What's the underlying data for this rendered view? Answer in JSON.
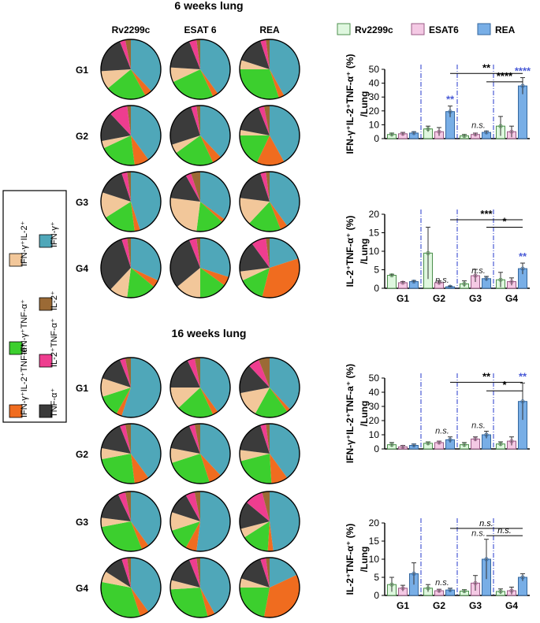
{
  "sections": [
    {
      "title": "6 weeks  lung",
      "chart_group": 0
    },
    {
      "title": "16 weeks  lung",
      "chart_group": 1
    }
  ],
  "pie_columns": [
    "Rv2299c",
    "ESAT 6",
    "REA"
  ],
  "pie_rows": [
    "G1",
    "G2",
    "G3",
    "G4"
  ],
  "legend_pie": {
    "items": [
      {
        "label": "IFN-γ⁺IL-2⁺",
        "color": "#f2c79a"
      },
      {
        "label": "IFN-γ⁺",
        "color": "#4fa7b9"
      },
      {
        "label": "IFN-γ⁺TNF-α⁺",
        "color": "#3ccf2e"
      },
      {
        "label": "IL-2⁺",
        "color": "#9b6a35"
      },
      {
        "label": "IFN-γ⁺IL-2⁺TNF-α⁺",
        "color": "#f06c1f"
      },
      {
        "label": "IL-2⁺TNF-α⁺",
        "color": "#ee3d8f"
      },
      {
        "label": "TNF-α⁺",
        "color": "#3b3b3b"
      }
    ]
  },
  "legend_bar": [
    {
      "label": "Rv2299c",
      "fill": "#dff7df",
      "stroke": "#4c8f4c"
    },
    {
      "label": "ESAT6",
      "fill": "#f4c9e4",
      "stroke": "#9a5c86"
    },
    {
      "label": "REA",
      "fill": "#78aee6",
      "stroke": "#34679e"
    }
  ],
  "chart_data": [
    {
      "type": "pie",
      "title": "6 weeks  lung",
      "categories": [
        "IFN-γ⁺",
        "IFN-γ⁺IL-2⁺TNF-α⁺",
        "IFN-γ⁺TNF-α⁺",
        "IFN-γ⁺IL-2⁺",
        "TNF-α⁺",
        "IL-2⁺TNF-α⁺",
        "IL-2⁺"
      ],
      "rows": [
        "G1",
        "G2",
        "G3",
        "G4"
      ],
      "columns": [
        "Rv2299c",
        "ESAT 6",
        "REA"
      ],
      "values": [
        [
          [
            38,
            4,
            22,
            10,
            20,
            3,
            3
          ],
          [
            40,
            3,
            25,
            8,
            18,
            4,
            2
          ],
          [
            42,
            3,
            30,
            5,
            15,
            3,
            2
          ]
        ],
        [
          [
            40,
            8,
            20,
            4,
            16,
            10,
            2
          ],
          [
            38,
            5,
            22,
            5,
            25,
            3,
            2
          ],
          [
            42,
            15,
            18,
            3,
            16,
            3,
            3
          ]
        ],
        [
          [
            45,
            3,
            18,
            14,
            15,
            3,
            2
          ],
          [
            35,
            2,
            15,
            25,
            15,
            3,
            5
          ],
          [
            40,
            4,
            18,
            15,
            18,
            3,
            2
          ]
        ],
        [
          [
            32,
            4,
            16,
            10,
            33,
            3,
            2
          ],
          [
            30,
            5,
            15,
            14,
            30,
            4,
            2
          ],
          [
            20,
            34,
            14,
            5,
            17,
            8,
            2
          ]
        ]
      ]
    },
    {
      "type": "pie",
      "title": "16 weeks  lung",
      "categories": [
        "IFN-γ⁺",
        "IFN-γ⁺IL-2⁺TNF-α⁺",
        "IFN-γ⁺TNF-α⁺",
        "IFN-γ⁺IL-2⁺",
        "TNF-α⁺",
        "IL-2⁺TNF-α⁺",
        "IL-2⁺"
      ],
      "rows": [
        "G1",
        "G2",
        "G3",
        "G4"
      ],
      "columns": [
        "Rv2299c",
        "ESAT 6",
        "REA"
      ],
      "values": [
        [
          [
            55,
            3,
            12,
            10,
            14,
            3,
            3
          ],
          [
            40,
            3,
            20,
            12,
            18,
            4,
            3
          ],
          [
            38,
            2,
            18,
            14,
            16,
            6,
            6
          ]
        ],
        [
          [
            40,
            8,
            24,
            6,
            16,
            3,
            3
          ],
          [
            38,
            7,
            25,
            8,
            16,
            3,
            3
          ],
          [
            40,
            9,
            22,
            6,
            18,
            3,
            2
          ]
        ],
        [
          [
            40,
            4,
            28,
            5,
            16,
            4,
            3
          ],
          [
            52,
            6,
            12,
            10,
            12,
            5,
            3
          ],
          [
            48,
            3,
            15,
            5,
            15,
            10,
            4
          ]
        ],
        [
          [
            40,
            5,
            33,
            6,
            11,
            3,
            2
          ],
          [
            42,
            4,
            28,
            5,
            15,
            4,
            2
          ],
          [
            18,
            35,
            22,
            5,
            15,
            3,
            2
          ]
        ]
      ]
    },
    {
      "type": "bar",
      "title": "",
      "ylabel": "IFN-γ⁺IL-2⁺TNF-α⁺ (%)/Lung",
      "ylabel_lines": [
        "IFN-γ⁺IL-2⁺TNF-α⁺ (%)",
        "/Lung"
      ],
      "ylim": [
        0,
        50
      ],
      "yticks": [
        0,
        10,
        20,
        30,
        40,
        50
      ],
      "categories": [
        "G1",
        "G2",
        "G3",
        "G4"
      ],
      "show_xlabels": false,
      "series": [
        {
          "name": "Rv2299c",
          "values": [
            3,
            7,
            2,
            9
          ],
          "err": [
            1,
            2,
            1,
            7
          ]
        },
        {
          "name": "ESAT6",
          "values": [
            3.5,
            5,
            3,
            5
          ],
          "err": [
            1,
            3,
            1,
            4
          ]
        },
        {
          "name": "REA",
          "values": [
            4,
            19.5,
            4.5,
            38
          ],
          "err": [
            1,
            4,
            1,
            6
          ]
        }
      ],
      "annotations": [
        {
          "series": 2,
          "group": 1,
          "text": "**",
          "color": "#4a5bd6"
        },
        {
          "series": 2,
          "group": 2,
          "text": "n.s.",
          "color": "#222222"
        },
        {
          "series": 2,
          "group": 3,
          "text": "****",
          "color": "#4a5bd6"
        }
      ],
      "brackets": [
        {
          "from_group": 1,
          "to_group": 3,
          "y": 47,
          "text": "**"
        },
        {
          "from_group": 2,
          "to_group": 3,
          "y": 41,
          "text": "****"
        }
      ]
    },
    {
      "type": "bar",
      "title": "",
      "ylabel": "IL-2⁺TNF-α⁺ (%)/Lung",
      "ylabel_lines": [
        "IL-2⁺TNF-α⁺ (%)",
        "/Lung"
      ],
      "ylim": [
        0,
        20
      ],
      "yticks": [
        0,
        5,
        10,
        15,
        20
      ],
      "categories": [
        "G1",
        "G2",
        "G3",
        "G4"
      ],
      "show_xlabels": true,
      "series": [
        {
          "name": "Rv2299c",
          "values": [
            3.5,
            9.5,
            1.2,
            2.3
          ],
          "err": [
            0.3,
            7,
            0.8,
            2
          ]
        },
        {
          "name": "ESAT6",
          "values": [
            1.5,
            1.5,
            3.4,
            1.8
          ],
          "err": [
            0.3,
            0.5,
            1.7,
            1
          ]
        },
        {
          "name": "REA",
          "values": [
            1.8,
            0.4,
            2.6,
            5.3
          ],
          "err": [
            0.3,
            0.2,
            0.6,
            1.5
          ]
        }
      ],
      "annotations": [
        {
          "series": 2,
          "group": 1,
          "text": "n.s.",
          "color": "#222222"
        },
        {
          "series": 2,
          "group": 2,
          "text": "n.s.",
          "color": "#222222"
        },
        {
          "series": 2,
          "group": 3,
          "text": "**",
          "color": "#4a5bd6"
        }
      ],
      "brackets": [
        {
          "from_group": 1,
          "to_group": 3,
          "y": 18.5,
          "text": "***"
        },
        {
          "from_group": 2,
          "to_group": 3,
          "y": 16.5,
          "text": "*"
        }
      ]
    },
    {
      "type": "bar",
      "title": "",
      "ylabel": "IFN-γ⁺IL-2⁺TNF-a⁺ (%)/Lung",
      "ylabel_lines": [
        "IFN-γ⁺IL-2⁺TNF-a⁺ (%)",
        "/Lung"
      ],
      "ylim": [
        0,
        50
      ],
      "yticks": [
        0,
        10,
        20,
        30,
        40,
        50
      ],
      "categories": [
        "G1",
        "G2",
        "G3",
        "G4"
      ],
      "show_xlabels": false,
      "series": [
        {
          "name": "Rv2299c",
          "values": [
            3,
            4,
            3,
            3.5
          ],
          "err": [
            1.5,
            1,
            1.5,
            1.5
          ]
        },
        {
          "name": "ESAT6",
          "values": [
            1.5,
            4.5,
            7,
            5.5
          ],
          "err": [
            1,
            1,
            1.5,
            3
          ]
        },
        {
          "name": "REA",
          "values": [
            2.5,
            6.5,
            10,
            33.5
          ],
          "err": [
            1,
            2,
            2.5,
            13
          ]
        }
      ],
      "annotations": [
        {
          "series": 2,
          "group": 1,
          "text": "n.s.",
          "color": "#222222"
        },
        {
          "series": 2,
          "group": 2,
          "text": "n.s.",
          "color": "#222222"
        },
        {
          "series": 2,
          "group": 3,
          "text": "**",
          "color": "#4a5bd6"
        }
      ],
      "brackets": [
        {
          "from_group": 1,
          "to_group": 3,
          "y": 47,
          "text": "**"
        },
        {
          "from_group": 2,
          "to_group": 3,
          "y": 41,
          "text": "*"
        }
      ]
    },
    {
      "type": "bar",
      "title": "",
      "ylabel": "IL-2⁺TNF-α⁺ (%)/Lung",
      "ylabel_lines": [
        "IL-2⁺TNF-α⁺ (%)",
        "/Lung"
      ],
      "ylim": [
        0,
        20
      ],
      "yticks": [
        0,
        5,
        10,
        15,
        20
      ],
      "categories": [
        "G1",
        "G2",
        "G3",
        "G4"
      ],
      "show_xlabels": true,
      "series": [
        {
          "name": "Rv2299c",
          "values": [
            3,
            2,
            1.2,
            1.1
          ],
          "err": [
            2,
            1,
            0.4,
            0.7
          ]
        },
        {
          "name": "ESAT6",
          "values": [
            2,
            1.3,
            3.4,
            1.3
          ],
          "err": [
            0.8,
            0.4,
            2.1,
            1
          ]
        },
        {
          "name": "REA",
          "values": [
            6,
            1.5,
            10,
            5
          ],
          "err": [
            3,
            0.5,
            5.5,
            1
          ]
        }
      ],
      "annotations": [
        {
          "series": 2,
          "group": 1,
          "text": "n.s.",
          "color": "#222222"
        },
        {
          "series": 2,
          "group": 2,
          "text": "n.s.",
          "color": "#222222"
        },
        {
          "series": 2,
          "group": 3,
          "text": "",
          "color": "#222222"
        }
      ],
      "brackets": [
        {
          "from_group": 1,
          "to_group": 3,
          "y": 18.5,
          "text": "n.s."
        },
        {
          "from_group": 2,
          "to_group": 3,
          "y": 16.5,
          "text": "n.s."
        }
      ]
    }
  ]
}
